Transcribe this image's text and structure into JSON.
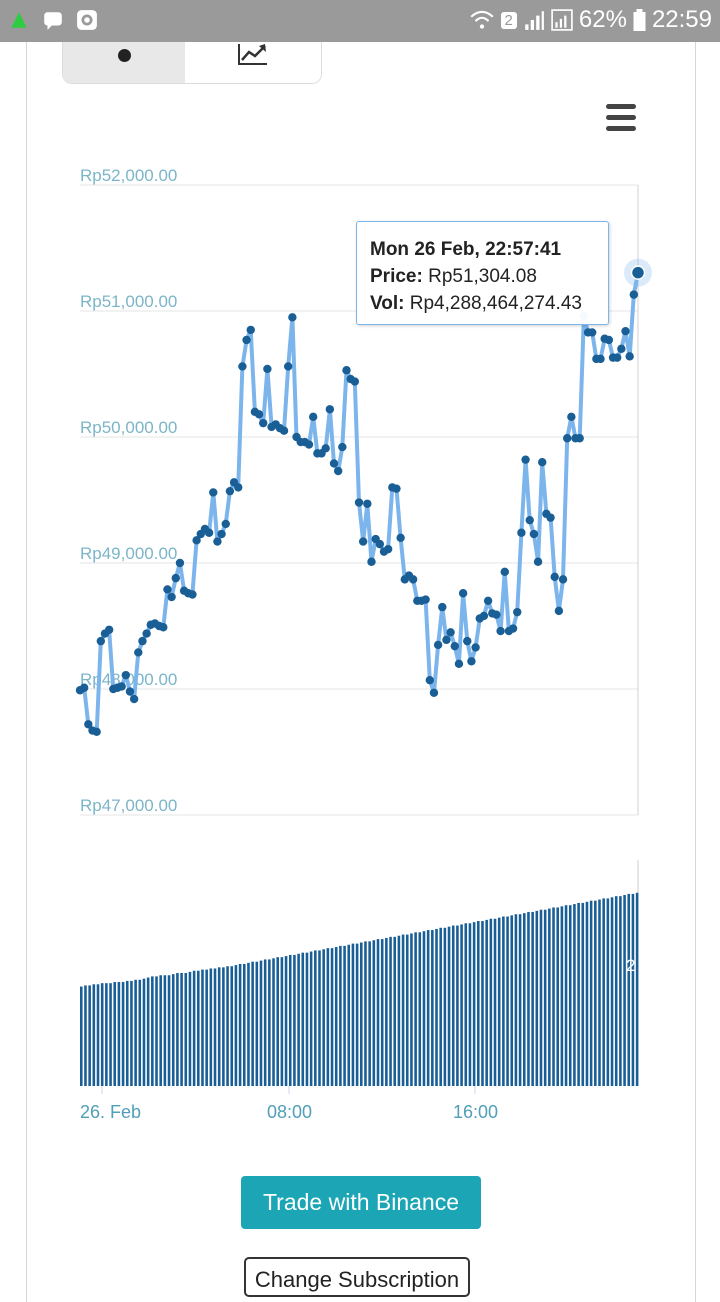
{
  "status_bar": {
    "notification_icons": [
      "up-arrow-icon",
      "chat-bubble-icon",
      "record-icon"
    ],
    "sim_badge": "2",
    "battery": "62%",
    "time": "22:59",
    "colors": {
      "bar": "#9a9a9a",
      "up_arrow": "#2ecc40"
    }
  },
  "toggle": {
    "options": [
      "dots-icon",
      "line-chart-icon"
    ],
    "selected": 0
  },
  "menu": {
    "icon": "hamburger-menu-icon"
  },
  "chart_data": [
    {
      "type": "line",
      "title": "",
      "xlabel": "",
      "ylabel": "",
      "ylim": [
        47000,
        52000
      ],
      "y_tick_labels": [
        "Rp52,000.00",
        "Rp51,000.00",
        "Rp50,000.00",
        "Rp49,000.00",
        "Rp48,000.00",
        "Rp47,000.00"
      ],
      "y_ticks": [
        52000,
        51000,
        50000,
        49000,
        48000,
        47000
      ],
      "x_tick_labels": [
        "26. Feb",
        "08:00",
        "16:00"
      ],
      "markers": true,
      "colors": {
        "line": "#7cb5ec",
        "marker": "#1a5e96"
      },
      "values": [
        47990,
        48010,
        47720,
        47670,
        47660,
        48380,
        48440,
        48470,
        48000,
        48010,
        48020,
        48110,
        47980,
        47920,
        48290,
        48380,
        48440,
        48510,
        48520,
        48500,
        48490,
        48790,
        48730,
        48880,
        49000,
        48780,
        48760,
        48750,
        49180,
        49230,
        49270,
        49240,
        49560,
        49170,
        49230,
        49310,
        49570,
        49640,
        49600,
        50560,
        50770,
        50850,
        50200,
        50180,
        50110,
        50540,
        50080,
        50100,
        50070,
        50050,
        50560,
        50950,
        50000,
        49960,
        49960,
        49940,
        50160,
        49870,
        49870,
        49910,
        50220,
        49790,
        49730,
        49920,
        50530,
        50460,
        50440,
        49480,
        49170,
        49470,
        49010,
        49190,
        49150,
        49090,
        49110,
        49600,
        49590,
        49200,
        48870,
        48900,
        48870,
        48700,
        48700,
        48710,
        48070,
        47970,
        48350,
        48650,
        48390,
        48450,
        48340,
        48200,
        48760,
        48380,
        48220,
        48330,
        48560,
        48580,
        48700,
        48600,
        48590,
        48460,
        48930,
        48460,
        48480,
        48610,
        49240,
        49820,
        49340,
        49230,
        49010,
        49800,
        49390,
        49360,
        48890,
        48620,
        48870,
        49990,
        50160,
        49990,
        49990,
        50960,
        50830,
        50830,
        50620,
        50620,
        50780,
        50770,
        50630,
        50630,
        50700,
        50840,
        50640,
        51130,
        51304.08
      ]
    },
    {
      "type": "bar",
      "title": "",
      "xlabel": "",
      "ylabel": "",
      "colors": {
        "bar": "#1a5e96"
      },
      "volume_index": [
        44,
        44.5,
        44.5,
        45,
        45,
        45.5,
        45.5,
        45.5,
        46,
        46,
        46,
        46.5,
        46.5,
        47,
        47,
        47.5,
        48,
        48.5,
        48.5,
        49,
        49,
        49,
        49.5,
        50,
        50,
        50,
        50.5,
        51,
        51,
        51.5,
        51.5,
        52,
        52,
        52.5,
        52.5,
        53,
        53,
        53.5,
        54,
        54,
        54.5,
        55,
        55,
        55.5,
        56,
        56,
        56.5,
        57,
        57,
        57.5,
        58,
        58,
        58.5,
        59,
        59,
        59.5,
        60,
        60,
        60.5,
        61,
        61,
        61.5,
        62,
        62,
        62.5,
        63,
        63,
        63.5,
        64,
        64,
        64.5,
        65,
        65,
        65.5,
        66,
        66,
        66.5,
        67,
        67,
        67.5,
        68,
        68,
        68.5,
        69,
        69,
        69.5,
        70,
        70,
        70.5,
        71,
        71,
        71.5,
        72,
        72,
        72.5,
        73,
        73,
        73.5,
        74,
        74,
        74.5,
        75,
        75,
        75.5,
        76,
        76,
        76.5,
        77,
        77,
        77.5,
        78,
        78,
        78.5,
        79,
        79,
        79.5,
        80,
        80,
        80.5,
        81,
        81,
        81.5,
        82,
        82,
        82.5,
        83,
        83,
        83.5,
        84,
        84,
        84.5,
        85,
        85,
        85.5
      ],
      "cutoff_label": "2"
    }
  ],
  "tooltip": {
    "date": "Mon 26 Feb, 22:57:41",
    "price_label": "Price:",
    "price_value": "Rp51,304.08",
    "vol_label": "Vol:",
    "vol_value": "Rp4,288,464,274.43"
  },
  "buttons": {
    "trade": "Trade with Binance",
    "exchange": "Change Subscription"
  }
}
